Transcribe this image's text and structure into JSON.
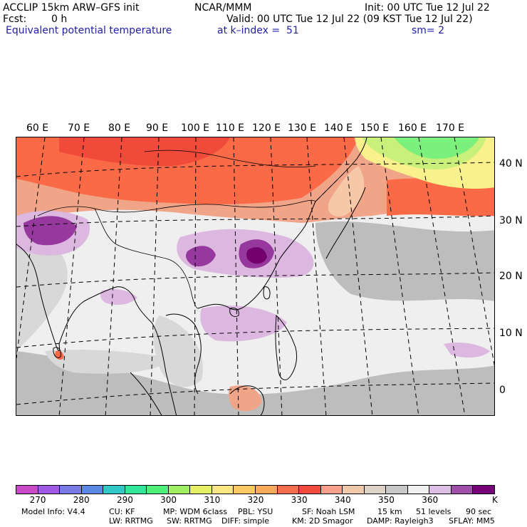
{
  "header": {
    "model_title": "ACCLIP 15km ARW–GFS init",
    "center": "NCAR/MMM",
    "init": "Init: 00 UTC Tue 12 Jul 22",
    "fcst_label": "Fcst:",
    "fcst_value": "0 h",
    "valid": "Valid: 00 UTC Tue 12 Jul 22 (09 KST Tue 12 Jul 22)",
    "field": "Equivalent potential temperature",
    "level": "at k–index =  51",
    "smoothing": "sm= 2"
  },
  "map": {
    "lon_labels": [
      "60 E",
      "70 E",
      "80 E",
      "90 E",
      "100 E",
      "110 E",
      "120 E",
      "130 E",
      "140 E",
      "150 E",
      "160 E",
      "170 E"
    ],
    "lat_labels": [
      "40 N",
      "30 N",
      "20 N",
      "10 N",
      "0"
    ],
    "colors": {
      "ocean_bg": "#efefef",
      "gray_light": "#d8d8d8",
      "gray_mid": "#bdbdbd",
      "lilac": "#dcb8e0",
      "purple": "#96389e",
      "dark_purple": "#74006e",
      "salmon": "#f0a488",
      "orange": "#fa6a46",
      "red": "#f04a3a",
      "peach": "#f6c8a8",
      "green": "#7cf07c",
      "yellowgreen": "#c8f07a",
      "yellow": "#faf08c"
    }
  },
  "colorbar": {
    "colors": [
      "#c84ac8",
      "#a05ae6",
      "#7a7ae6",
      "#5a8ae6",
      "#32c8c8",
      "#32e69a",
      "#50f078",
      "#a0f064",
      "#e6f064",
      "#fae682",
      "#fac864",
      "#faaa5a",
      "#fa6e50",
      "#f04b3c",
      "#faa08c",
      "#f0c8aa",
      "#dcd2c8",
      "#c8c8c8",
      "#f0f0f0",
      "#dcbee6",
      "#a050aa",
      "#780078"
    ],
    "tick_labels": [
      "270",
      "280",
      "290",
      "300",
      "310",
      "320",
      "330",
      "340",
      "350",
      "360"
    ],
    "unit": "K"
  },
  "footer": {
    "line1": [
      "Model Info: V4.4",
      "CU: KF",
      "MP: WDM 6class",
      "PBL: YSU",
      "SF: Noah LSM",
      "15 km",
      "51 levels",
      "90 sec"
    ],
    "line2": [
      "LW: RRTMG",
      "SW: RRTMG",
      "DIFF: simple",
      "KM: 2D Smagor",
      "DAMP: Rayleigh3",
      "SFLAY: MM5"
    ]
  }
}
